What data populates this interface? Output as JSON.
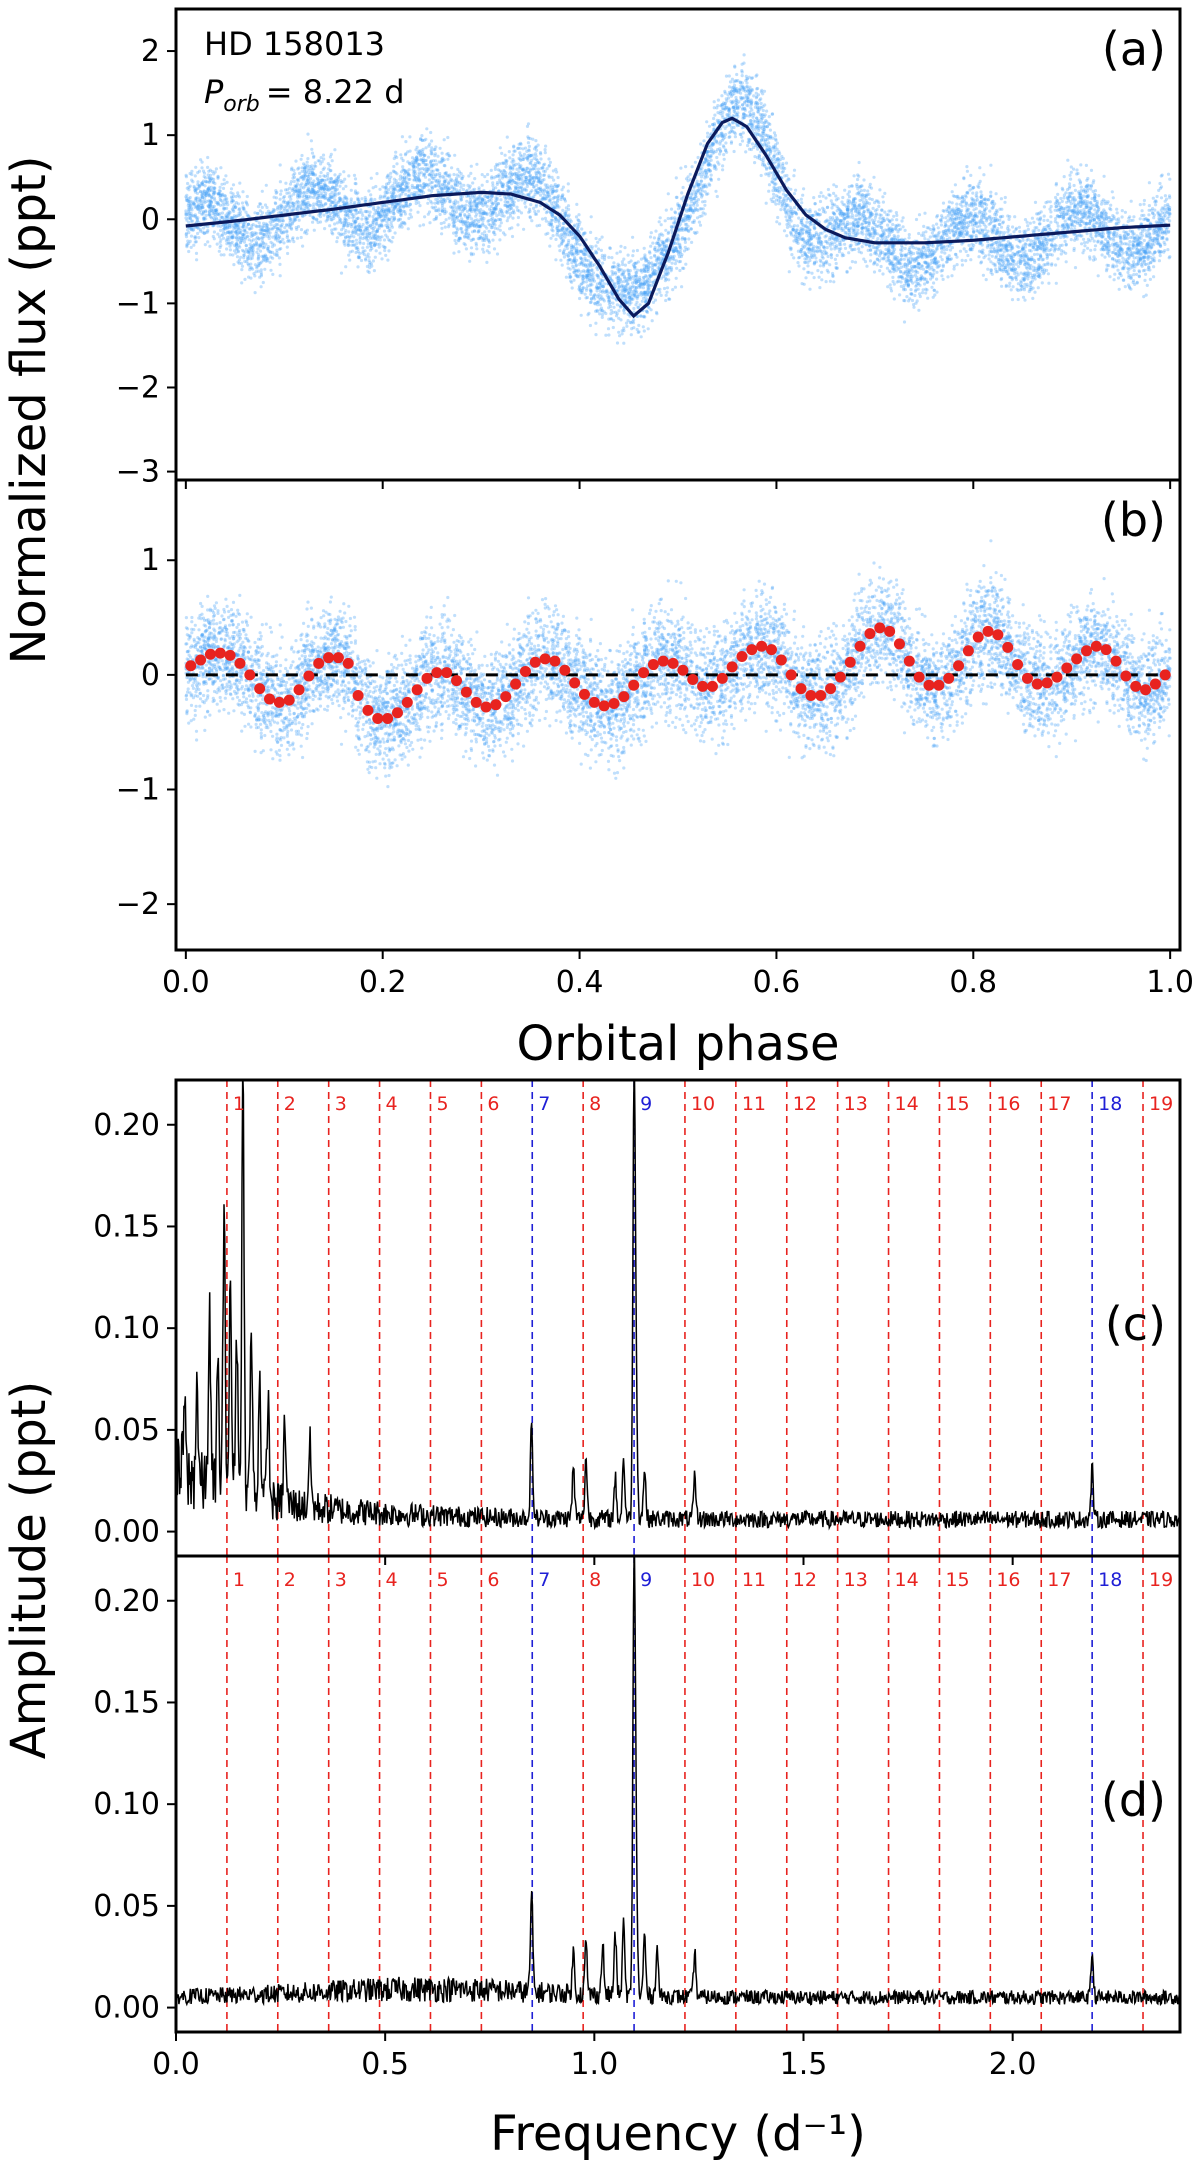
{
  "chart_data": [
    {
      "id": "a",
      "type": "scatter",
      "panel_label": "(a)",
      "annotation": {
        "star": "HD 158013",
        "period_symbol": "P",
        "period_sub": "orb",
        "period_value": "= 8.22 d"
      },
      "xlim": [
        -0.01,
        1.01
      ],
      "ylim": [
        -3.1,
        2.5
      ],
      "x_ticks": [
        0.0,
        0.2,
        0.4,
        0.6,
        0.8,
        1.0
      ],
      "x_tick_labels": [
        "0.0",
        "0.2",
        "0.4",
        "0.6",
        "0.8",
        "1.0"
      ],
      "show_x_tick_labels": false,
      "y_ticks": [
        -3,
        -2,
        -1,
        0,
        1,
        2
      ],
      "y_tick_labels": [
        "−3",
        "−2",
        "−1",
        "0",
        "1",
        "2"
      ],
      "scatter_color": "#4aa3f5",
      "model": {
        "color": "#0b1a5c",
        "x": [
          0.0,
          0.05,
          0.1,
          0.15,
          0.2,
          0.25,
          0.3,
          0.33,
          0.36,
          0.38,
          0.4,
          0.42,
          0.44,
          0.455,
          0.47,
          0.49,
          0.51,
          0.53,
          0.545,
          0.555,
          0.57,
          0.59,
          0.61,
          0.63,
          0.65,
          0.67,
          0.7,
          0.75,
          0.8,
          0.85,
          0.9,
          0.95,
          1.0
        ],
        "y": [
          -0.08,
          -0.02,
          0.05,
          0.12,
          0.2,
          0.28,
          0.32,
          0.3,
          0.2,
          0.05,
          -0.2,
          -0.55,
          -0.95,
          -1.15,
          -1.0,
          -0.4,
          0.3,
          0.9,
          1.15,
          1.2,
          1.1,
          0.75,
          0.35,
          0.05,
          -0.12,
          -0.22,
          -0.28,
          -0.28,
          -0.25,
          -0.2,
          -0.15,
          -0.1,
          -0.07
        ]
      }
    },
    {
      "id": "b",
      "type": "scatter",
      "panel_label": "(b)",
      "xlim": [
        -0.01,
        1.01
      ],
      "ylim": [
        -2.4,
        1.7
      ],
      "x_ticks": [
        0.0,
        0.2,
        0.4,
        0.6,
        0.8,
        1.0
      ],
      "x_tick_labels": [
        "0.0",
        "0.2",
        "0.4",
        "0.6",
        "0.8",
        "1.0"
      ],
      "show_x_tick_labels": true,
      "y_ticks": [
        -2,
        -1,
        0,
        1
      ],
      "y_tick_labels": [
        "−2",
        "−1",
        "0",
        "1"
      ],
      "xlabel": "Orbital phase",
      "scatter_color": "#4aa3f5",
      "zero_line_color": "#000000",
      "binned_color": "#e8231f",
      "binned_x": [
        0.005,
        0.015,
        0.025,
        0.035,
        0.045,
        0.055,
        0.065,
        0.075,
        0.085,
        0.095,
        0.105,
        0.115,
        0.125,
        0.135,
        0.145,
        0.155,
        0.165,
        0.175,
        0.185,
        0.195,
        0.205,
        0.215,
        0.225,
        0.235,
        0.245,
        0.255,
        0.265,
        0.275,
        0.285,
        0.295,
        0.305,
        0.315,
        0.325,
        0.335,
        0.345,
        0.355,
        0.365,
        0.375,
        0.385,
        0.395,
        0.405,
        0.415,
        0.425,
        0.435,
        0.445,
        0.455,
        0.465,
        0.475,
        0.485,
        0.495,
        0.505,
        0.515,
        0.525,
        0.535,
        0.545,
        0.555,
        0.565,
        0.575,
        0.585,
        0.595,
        0.605,
        0.615,
        0.625,
        0.635,
        0.645,
        0.655,
        0.665,
        0.675,
        0.685,
        0.695,
        0.705,
        0.715,
        0.725,
        0.735,
        0.745,
        0.755,
        0.765,
        0.775,
        0.785,
        0.795,
        0.805,
        0.815,
        0.825,
        0.835,
        0.845,
        0.855,
        0.865,
        0.875,
        0.885,
        0.895,
        0.905,
        0.915,
        0.925,
        0.935,
        0.945,
        0.955,
        0.965,
        0.975,
        0.985,
        0.995
      ],
      "binned_y": [
        0.08,
        0.13,
        0.18,
        0.19,
        0.17,
        0.1,
        0.0,
        -0.12,
        -0.21,
        -0.24,
        -0.22,
        -0.13,
        -0.01,
        0.1,
        0.15,
        0.15,
        0.1,
        -0.18,
        -0.31,
        -0.38,
        -0.38,
        -0.33,
        -0.24,
        -0.13,
        -0.03,
        0.02,
        0.02,
        -0.05,
        -0.15,
        -0.24,
        -0.28,
        -0.26,
        -0.19,
        -0.08,
        0.03,
        0.11,
        0.14,
        0.12,
        0.04,
        -0.07,
        -0.17,
        -0.24,
        -0.27,
        -0.25,
        -0.19,
        -0.09,
        0.02,
        0.09,
        0.12,
        0.1,
        0.04,
        -0.04,
        -0.1,
        -0.1,
        -0.03,
        0.07,
        0.16,
        0.22,
        0.25,
        0.22,
        0.13,
        0.0,
        -0.12,
        -0.18,
        -0.18,
        -0.12,
        -0.02,
        0.11,
        0.25,
        0.36,
        0.41,
        0.38,
        0.27,
        0.12,
        -0.02,
        -0.09,
        -0.09,
        -0.03,
        0.08,
        0.21,
        0.33,
        0.38,
        0.35,
        0.24,
        0.09,
        -0.03,
        -0.08,
        -0.07,
        -0.02,
        0.06,
        0.14,
        0.21,
        0.25,
        0.22,
        0.12,
        -0.01,
        -0.1,
        -0.13,
        -0.08,
        0.0
      ]
    },
    {
      "id": "c",
      "type": "line",
      "panel_label": "(c)",
      "xlim": [
        0.0,
        2.4
      ],
      "ylim": [
        -0.012,
        0.222
      ],
      "x_ticks": [
        0.0,
        0.5,
        1.0,
        1.5,
        2.0
      ],
      "x_tick_labels": [
        "0.0",
        "0.5",
        "1.0",
        "1.5",
        "2.0"
      ],
      "show_x_tick_labels": false,
      "y_ticks": [
        0.0,
        0.05,
        0.1,
        0.15,
        0.2
      ],
      "y_tick_labels": [
        "0.00",
        "0.05",
        "0.10",
        "0.15",
        "0.20"
      ],
      "harmonics_x": [
        0.1217,
        0.2433,
        0.365,
        0.4866,
        0.6083,
        0.73,
        0.8516,
        0.9733,
        1.095,
        1.2166,
        1.3383,
        1.46,
        1.5816,
        1.7033,
        1.825,
        1.9466,
        2.0683,
        2.19,
        2.3116
      ],
      "harmonics_labels": [
        "1",
        "2",
        "3",
        "4",
        "5",
        "6",
        "7",
        "8",
        "9",
        "10",
        "11",
        "12",
        "13",
        "14",
        "15",
        "16",
        "17",
        "18",
        "19"
      ],
      "harmonics_highlight": [
        "7",
        "9",
        "18"
      ],
      "harmonic_color": "#e8231f",
      "highlight_color": "#1f1fd6",
      "peaks_freq": [
        0.02,
        0.05,
        0.08,
        0.1,
        0.115,
        0.13,
        0.145,
        0.16,
        0.18,
        0.2,
        0.22,
        0.26,
        0.32,
        0.85,
        0.95,
        0.98,
        1.05,
        1.07,
        1.095,
        1.1,
        1.12,
        1.24,
        2.19
      ],
      "peaks_amp": [
        0.035,
        0.05,
        0.085,
        0.06,
        0.13,
        0.1,
        0.08,
        0.205,
        0.08,
        0.06,
        0.05,
        0.04,
        0.032,
        0.045,
        0.025,
        0.03,
        0.02,
        0.03,
        0.21,
        0.06,
        0.025,
        0.02,
        0.025
      ]
    },
    {
      "id": "d",
      "type": "line",
      "panel_label": "(d)",
      "xlim": [
        0.0,
        2.4
      ],
      "ylim": [
        -0.012,
        0.222
      ],
      "x_ticks": [
        0.0,
        0.5,
        1.0,
        1.5,
        2.0
      ],
      "x_tick_labels": [
        "0.0",
        "0.5",
        "1.0",
        "1.5",
        "2.0"
      ],
      "show_x_tick_labels": true,
      "y_ticks": [
        0.0,
        0.05,
        0.1,
        0.15,
        0.2
      ],
      "y_tick_labels": [
        "0.00",
        "0.05",
        "0.10",
        "0.15",
        "0.20"
      ],
      "xlabel": "Frequency (d⁻¹)",
      "harmonics_x": [
        0.1217,
        0.2433,
        0.365,
        0.4866,
        0.6083,
        0.73,
        0.8516,
        0.9733,
        1.095,
        1.2166,
        1.3383,
        1.46,
        1.5816,
        1.7033,
        1.825,
        1.9466,
        2.0683,
        2.19,
        2.3116
      ],
      "harmonics_labels": [
        "1",
        "2",
        "3",
        "4",
        "5",
        "6",
        "7",
        "8",
        "9",
        "10",
        "11",
        "12",
        "13",
        "14",
        "15",
        "16",
        "17",
        "18",
        "19"
      ],
      "harmonics_highlight": [
        "7",
        "9",
        "18"
      ],
      "harmonic_color": "#e8231f",
      "highlight_color": "#1f1fd6",
      "peaks_freq": [
        0.85,
        0.95,
        0.98,
        1.02,
        1.05,
        1.07,
        1.095,
        1.1,
        1.12,
        1.15,
        1.24,
        2.19
      ],
      "peaks_amp": [
        0.048,
        0.02,
        0.025,
        0.025,
        0.03,
        0.035,
        0.21,
        0.06,
        0.03,
        0.025,
        0.022,
        0.022
      ]
    }
  ],
  "ylabel_top": "Normalized flux (ppt)",
  "ylabel_bottom": "Amplitude (ppt)"
}
